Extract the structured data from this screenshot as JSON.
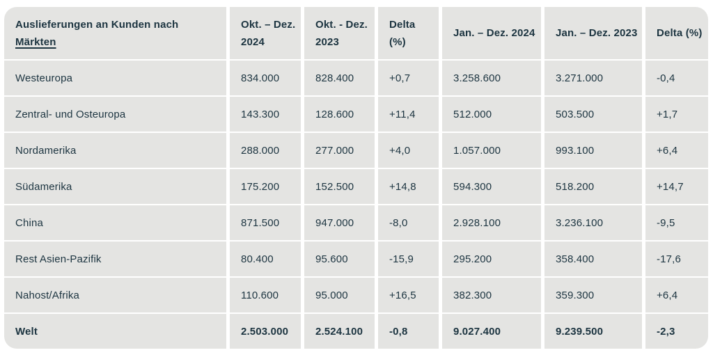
{
  "title_column": {
    "prefix": "Auslieferungen an Kunden nach ",
    "term": "Märkten"
  },
  "columns": [
    "Okt. – Dez. 2024",
    "Okt. - Dez. 2023",
    "Delta (%)",
    "Jan. – Dez. 2024",
    "Jan. – Dez. 2023",
    "Delta (%)"
  ],
  "rows": [
    {
      "label": "Westeuropa",
      "values": [
        "834.000",
        "828.400",
        "+0,7",
        "3.258.600",
        "3.271.000",
        "-0,4"
      ],
      "bold": false
    },
    {
      "label": "Zentral- und Osteuropa",
      "values": [
        "143.300",
        "128.600",
        "+11,4",
        "512.000",
        "503.500",
        "+1,7"
      ],
      "bold": false
    },
    {
      "label": "Nordamerika",
      "values": [
        "288.000",
        "277.000",
        "+4,0",
        "1.057.000",
        "993.100",
        "+6,4"
      ],
      "bold": false
    },
    {
      "label": "Südamerika",
      "values": [
        "175.200",
        "152.500",
        "+14,8",
        "594.300",
        "518.200",
        "+14,7"
      ],
      "bold": false
    },
    {
      "label": "China",
      "values": [
        "871.500",
        "947.000",
        "-8,0",
        "2.928.100",
        "3.236.100",
        "-9,5"
      ],
      "bold": false
    },
    {
      "label": "Rest Asien-Pazifik",
      "values": [
        "80.400",
        "95.600",
        "-15,9",
        "295.200",
        "358.400",
        "-17,6"
      ],
      "bold": false
    },
    {
      "label": "Nahost/Afrika",
      "values": [
        "110.600",
        "95.000",
        "+16,5",
        "382.300",
        "359.300",
        "+6,4"
      ],
      "bold": false
    },
    {
      "label": "Welt",
      "values": [
        "2.503.000",
        "2.524.100",
        "-0,8",
        "9.027.400",
        "9.239.500",
        "-2,3"
      ],
      "bold": true
    }
  ],
  "colors": {
    "cell_background": "#e4e4e2",
    "text": "#1c3440",
    "grid_gap": "#ffffff"
  },
  "chart_data": {
    "type": "table",
    "title": "Auslieferungen an Kunden nach Märkten",
    "columns": [
      "Okt. – Dez. 2024",
      "Okt. - Dez. 2023",
      "Delta (%)",
      "Jan. – Dez. 2024",
      "Jan. – Dez. 2023",
      "Delta (%)"
    ],
    "categories": [
      "Westeuropa",
      "Zentral- und Osteuropa",
      "Nordamerika",
      "Südamerika",
      "China",
      "Rest Asien-Pazifik",
      "Nahost/Afrika",
      "Welt"
    ],
    "series": [
      {
        "name": "Okt. – Dez. 2024",
        "values": [
          834000,
          143300,
          288000,
          175200,
          871500,
          80400,
          110600,
          2503000
        ]
      },
      {
        "name": "Okt. - Dez. 2023",
        "values": [
          828400,
          128600,
          277000,
          152500,
          947000,
          95600,
          95000,
          2524100
        ]
      },
      {
        "name": "Delta (%)",
        "values": [
          0.7,
          11.4,
          4.0,
          14.8,
          -8.0,
          -15.9,
          16.5,
          -0.8
        ]
      },
      {
        "name": "Jan. – Dez. 2024",
        "values": [
          3258600,
          512000,
          1057000,
          594300,
          2928100,
          295200,
          382300,
          9027400
        ]
      },
      {
        "name": "Jan. – Dez. 2023",
        "values": [
          3271000,
          503500,
          993100,
          518200,
          3236100,
          358400,
          359300,
          9239500
        ]
      },
      {
        "name": "Delta (%)",
        "values": [
          -0.4,
          1.7,
          6.4,
          14.7,
          -9.5,
          -17.6,
          6.4,
          -2.3
        ]
      }
    ]
  }
}
